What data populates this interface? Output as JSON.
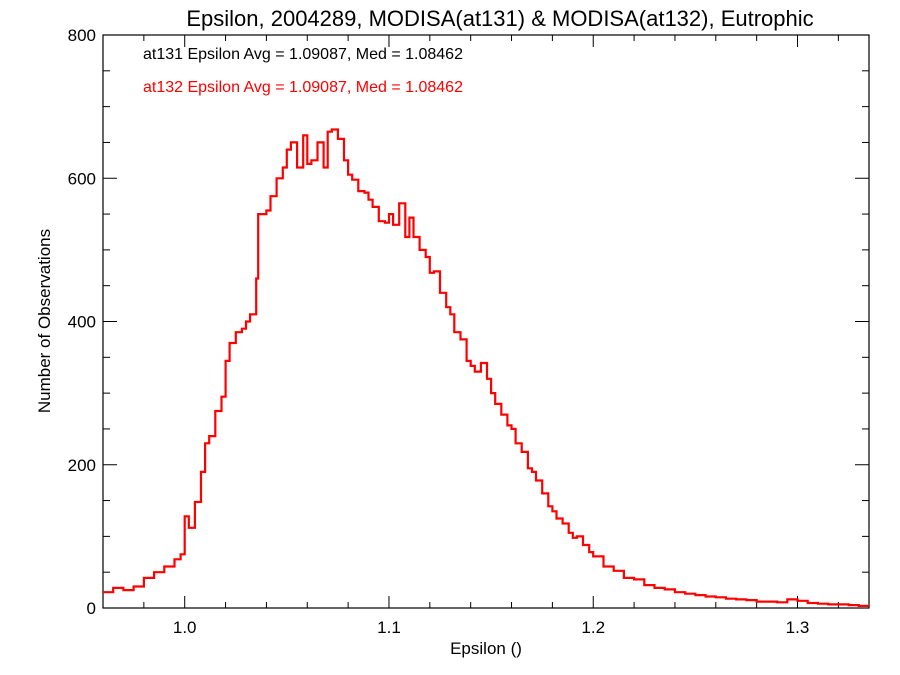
{
  "chart_data": {
    "type": "line",
    "style": "step-histogram",
    "title": "Epsilon, 2004289, MODISA(at131) & MODISA(at132), Eutrophic",
    "xlabel": "Epsilon ()",
    "ylabel": "Number of Observations",
    "xlim": [
      0.96,
      1.335
    ],
    "ylim": [
      0,
      800
    ],
    "xticks": [
      1.0,
      1.1,
      1.2,
      1.3
    ],
    "xtick_labels": [
      "1.0",
      "1.1",
      "1.2",
      "1.3"
    ],
    "yticks": [
      0,
      200,
      400,
      600,
      800
    ],
    "ytick_labels": [
      "0",
      "200",
      "400",
      "600",
      "800"
    ],
    "grid": false,
    "annotations": [
      {
        "text": "at131 Epsilon Avg = 1.09087, Med = 1.08462",
        "color": "#000000"
      },
      {
        "text": "at132 Epsilon Avg = 1.09087, Med = 1.08462",
        "color": "#ff0000"
      }
    ],
    "series": [
      {
        "color": "#ff0000",
        "x": [
          0.96,
          0.965,
          0.97,
          0.975,
          0.98,
          0.985,
          0.99,
          0.995,
          0.998,
          1.0,
          1.002,
          1.005,
          1.008,
          1.01,
          1.012,
          1.015,
          1.018,
          1.02,
          1.022,
          1.025,
          1.028,
          1.03,
          1.032,
          1.035,
          1.036,
          1.04,
          1.042,
          1.045,
          1.048,
          1.05,
          1.052,
          1.055,
          1.058,
          1.06,
          1.062,
          1.065,
          1.068,
          1.07,
          1.072,
          1.075,
          1.078,
          1.08,
          1.082,
          1.085,
          1.088,
          1.09,
          1.092,
          1.095,
          1.098,
          1.1,
          1.102,
          1.105,
          1.108,
          1.11,
          1.112,
          1.115,
          1.118,
          1.12,
          1.122,
          1.125,
          1.128,
          1.13,
          1.132,
          1.135,
          1.138,
          1.14,
          1.142,
          1.145,
          1.148,
          1.15,
          1.152,
          1.155,
          1.158,
          1.16,
          1.162,
          1.165,
          1.168,
          1.17,
          1.172,
          1.175,
          1.178,
          1.18,
          1.182,
          1.185,
          1.188,
          1.19,
          1.192,
          1.195,
          1.198,
          1.2,
          1.205,
          1.21,
          1.215,
          1.22,
          1.225,
          1.23,
          1.235,
          1.24,
          1.245,
          1.25,
          1.255,
          1.26,
          1.265,
          1.27,
          1.275,
          1.28,
          1.285,
          1.29,
          1.295,
          1.3,
          1.305,
          1.31,
          1.315,
          1.32,
          1.325,
          1.33,
          1.335
        ],
        "y": [
          22,
          28,
          25,
          30,
          42,
          50,
          58,
          68,
          75,
          128,
          112,
          148,
          190,
          230,
          240,
          275,
          295,
          345,
          370,
          385,
          390,
          400,
          410,
          460,
          550,
          555,
          575,
          600,
          615,
          640,
          650,
          615,
          660,
          620,
          625,
          650,
          615,
          665,
          668,
          655,
          625,
          605,
          598,
          582,
          580,
          570,
          560,
          540,
          538,
          550,
          535,
          565,
          518,
          545,
          518,
          500,
          490,
          468,
          470,
          440,
          420,
          410,
          385,
          375,
          345,
          338,
          330,
          342,
          320,
          300,
          285,
          270,
          255,
          250,
          230,
          218,
          195,
          190,
          178,
          160,
          142,
          135,
          125,
          118,
          105,
          98,
          100,
          88,
          78,
          72,
          58,
          52,
          42,
          40,
          32,
          28,
          26,
          22,
          20,
          18,
          16,
          15,
          13,
          12,
          11,
          9,
          9,
          8,
          12,
          10,
          7,
          6,
          5,
          5,
          4,
          3,
          3
        ]
      }
    ]
  }
}
